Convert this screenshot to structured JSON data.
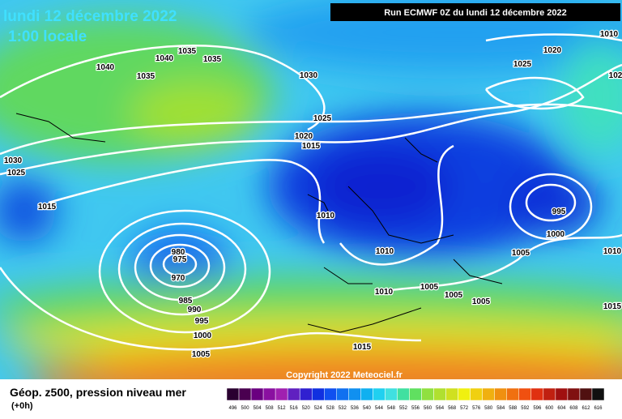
{
  "header": {
    "title": "lundi 12 décembre 2022",
    "time": "1:00 locale",
    "run": "Run ECMWF 0Z du lundi 12 décembre 2022"
  },
  "isobar_labels": [
    "1040",
    "1040",
    "1035",
    "1035",
    "1035",
    "1030",
    "1025",
    "1020",
    "1015",
    "1030",
    "1025",
    "1015",
    "1010",
    "1010",
    "1010",
    "1005",
    "1005",
    "1005",
    "1005",
    "1000",
    "995",
    "1020",
    "1025",
    "1010",
    "102",
    "1010",
    "1015",
    "980",
    "975",
    "970",
    "985",
    "990",
    "995",
    "1000",
    "1005",
    "1015"
  ],
  "copyright": "Copyright 2022 Meteociel.fr",
  "legend": {
    "title": "Géop. z500, pression niveau mer",
    "step": "(+0h)",
    "labels": [
      "496",
      "500",
      "504",
      "508",
      "512",
      "516",
      "520",
      "524",
      "528",
      "532",
      "536",
      "540",
      "544",
      "548",
      "552",
      "556",
      "560",
      "564",
      "568",
      "572",
      "576",
      "580",
      "584",
      "588",
      "592",
      "596",
      "600",
      "604",
      "608",
      "612",
      "616"
    ],
    "colors": [
      "#2a0030",
      "#4a0050",
      "#6a0080",
      "#8a10a0",
      "#a020b0",
      "#6020c0",
      "#3020d0",
      "#1030e0",
      "#1050f0",
      "#1070f0",
      "#1090f0",
      "#10b0f0",
      "#20d0f0",
      "#40e0e0",
      "#40e0a0",
      "#60e060",
      "#90e040",
      "#b0e030",
      "#d0e020",
      "#f0f010",
      "#f0d010",
      "#f0b010",
      "#f09010",
      "#f07010",
      "#f05010",
      "#e03010",
      "#c02010",
      "#a01010",
      "#801010",
      "#501010",
      "#101010"
    ]
  }
}
